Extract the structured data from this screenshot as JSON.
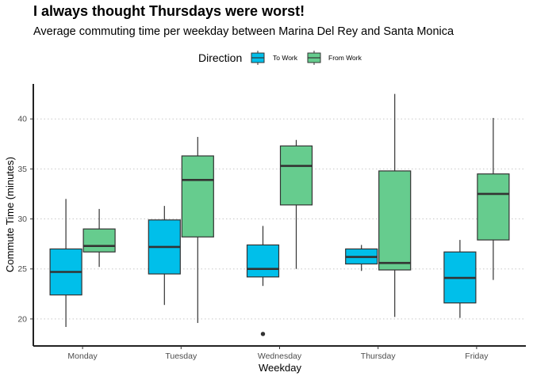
{
  "chart_data": {
    "type": "boxplot",
    "title": "I always thought Thursdays were worst!",
    "subtitle": "Average commuting time per weekday between Marina Del Rey and Santa Monica",
    "xlabel": "Weekday",
    "ylabel": "Commute Time (minutes)",
    "ylim": [
      17.3,
      43.5
    ],
    "yticks": [
      20,
      25,
      30,
      35,
      40
    ],
    "grid": "horizontal-dotted",
    "legend": {
      "title": "Direction",
      "position": "top"
    },
    "categories": [
      "Monday",
      "Tuesday",
      "Wednesday",
      "Thursday",
      "Friday"
    ],
    "series": [
      {
        "name": "To Work",
        "color": "#00BFEA",
        "boxes": [
          {
            "min": 19.2,
            "q1": 22.4,
            "median": 24.7,
            "q3": 27.0,
            "max": 32.0,
            "outliers": []
          },
          {
            "min": 21.4,
            "q1": 24.5,
            "median": 27.2,
            "q3": 29.9,
            "max": 31.3,
            "outliers": []
          },
          {
            "min": 23.3,
            "q1": 24.2,
            "median": 25.0,
            "q3": 27.4,
            "max": 29.3,
            "outliers": [
              18.5
            ]
          },
          {
            "min": 24.8,
            "q1": 25.5,
            "median": 26.2,
            "q3": 27.0,
            "max": 27.4,
            "outliers": []
          },
          {
            "min": 20.1,
            "q1": 21.6,
            "median": 24.1,
            "q3": 26.7,
            "max": 27.9,
            "outliers": []
          }
        ]
      },
      {
        "name": "From Work",
        "color": "#66CC8E",
        "boxes": [
          {
            "min": 25.2,
            "q1": 26.7,
            "median": 27.3,
            "q3": 29.0,
            "max": 31.0,
            "outliers": []
          },
          {
            "min": 19.6,
            "q1": 28.2,
            "median": 33.9,
            "q3": 36.3,
            "max": 38.2,
            "outliers": []
          },
          {
            "min": 25.0,
            "q1": 31.4,
            "median": 35.3,
            "q3": 37.3,
            "max": 37.9,
            "outliers": []
          },
          {
            "min": 20.2,
            "q1": 24.9,
            "median": 25.6,
            "q3": 34.8,
            "max": 42.5,
            "outliers": []
          },
          {
            "min": 23.9,
            "q1": 27.9,
            "median": 32.5,
            "q3": 34.5,
            "max": 40.1,
            "outliers": []
          }
        ]
      }
    ]
  }
}
